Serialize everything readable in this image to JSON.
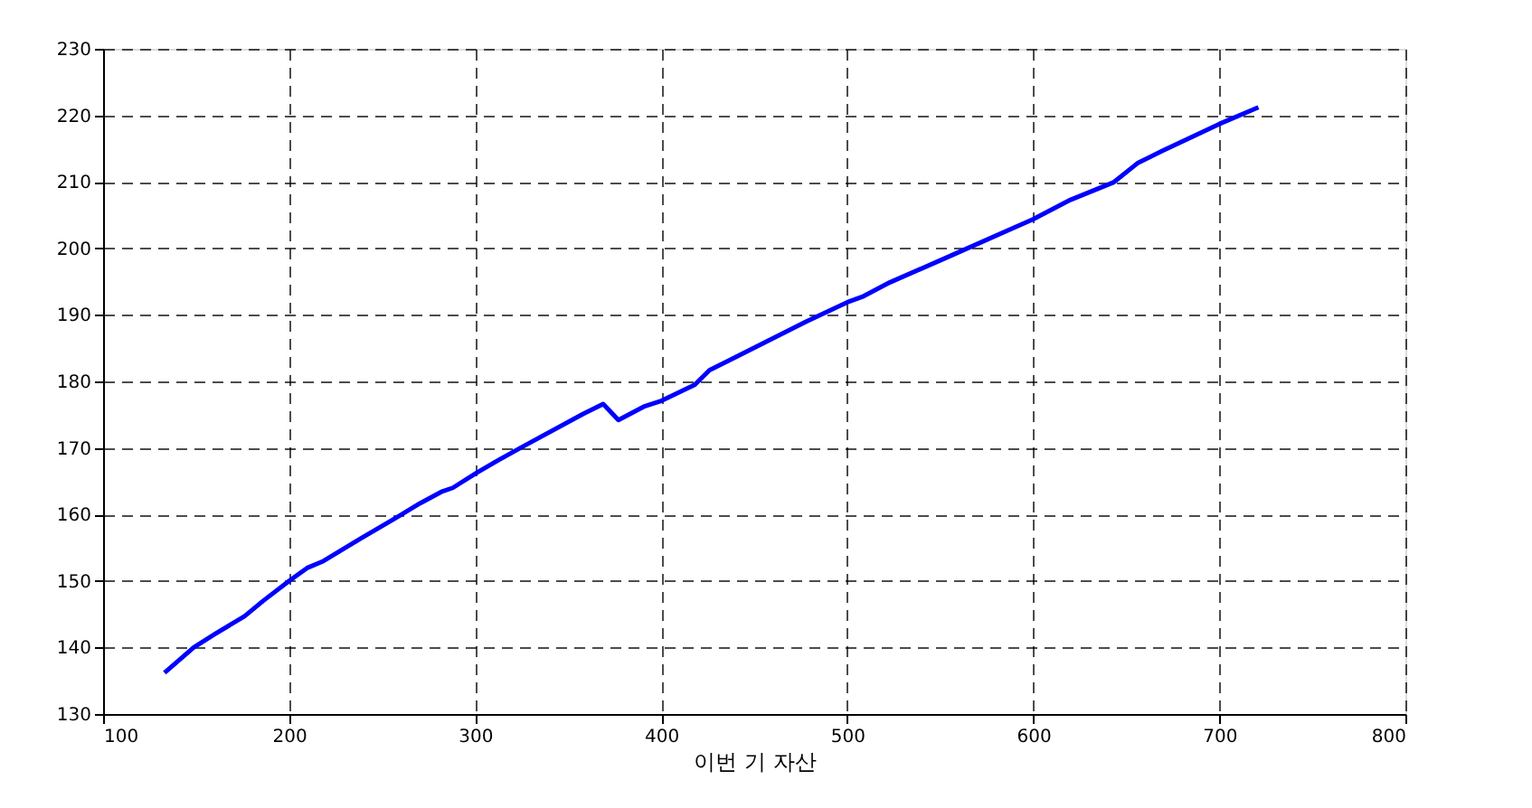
{
  "chart_data": {
    "type": "line",
    "xlabel": "이번 기 자산",
    "series": [
      {
        "color": "#0000ff",
        "x": [
          133,
          148.7,
          160,
          176,
          186,
          200,
          210,
          218.5,
          238,
          257.5,
          270.5,
          281.8,
          288,
          301,
          312.7,
          325.6,
          358,
          368.8,
          377,
          390.6,
          400.3,
          418,
          426,
          436,
          478,
          500,
          508.7,
          523,
          555.7,
          600,
          620,
          643,
          656,
          669,
          700,
          721
        ],
        "values": [
          136.2,
          140,
          142,
          144.7,
          147,
          150,
          152,
          153,
          156.3,
          159.5,
          161.7,
          163.4,
          164,
          166.3,
          168.2,
          170.2,
          175.1,
          176.6,
          174.2,
          176.2,
          177.1,
          179.5,
          181.7,
          183.1,
          189,
          191.9,
          192.8,
          194.9,
          198.9,
          204.4,
          207.3,
          209.9,
          212.8,
          214.6,
          218.7,
          221.2
        ]
      }
    ],
    "xlim": [
      100,
      800
    ],
    "xticks": [
      100,
      200,
      300,
      400,
      500,
      600,
      700,
      800
    ],
    "ylim": [
      130,
      230
    ],
    "yticks": [
      130,
      140,
      150,
      160,
      170,
      180,
      190,
      200,
      210,
      220,
      230
    ],
    "grid": true,
    "line_style": "solid"
  }
}
